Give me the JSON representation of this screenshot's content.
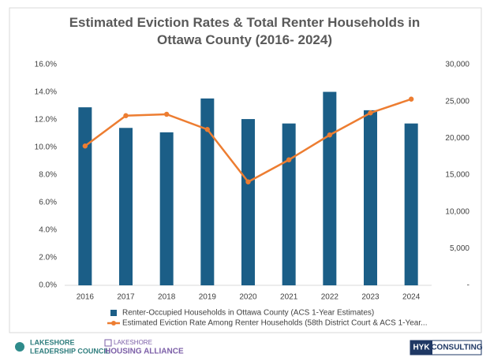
{
  "chart_data": {
    "type": "bar-line",
    "title": "Estimated Eviction Rates & Total Renter Households in Ottawa County (2016- 2024)",
    "categories": [
      "2016",
      "2017",
      "2018",
      "2019",
      "2020",
      "2021",
      "2022",
      "2023",
      "2024"
    ],
    "series": [
      {
        "name": "Renter-Occupied Households in Ottawa County (ACS 1-Year Estimates)",
        "type": "bar",
        "axis": "y2",
        "color": "#1b5e87",
        "values": [
          24200,
          21400,
          20800,
          25400,
          22600,
          22000,
          26300,
          23800,
          22000
        ]
      },
      {
        "name": "Estimated Eviction Rate Among Renter Households (58th District Court & ACS 1-Year...",
        "type": "line",
        "axis": "y",
        "color": "#ed7d31",
        "values": [
          10.1,
          12.3,
          12.4,
          11.3,
          7.5,
          9.1,
          10.9,
          12.5,
          13.5
        ]
      }
    ],
    "ylim": [
      0,
      16
    ],
    "yticks": [
      {
        "value": 0,
        "label": "0.0%"
      },
      {
        "value": 2,
        "label": "2.0%"
      },
      {
        "value": 4,
        "label": "4.0%"
      },
      {
        "value": 6,
        "label": "6.0%"
      },
      {
        "value": 8,
        "label": "8.0%"
      },
      {
        "value": 10,
        "label": "10.0%"
      },
      {
        "value": 12,
        "label": "12.0%"
      },
      {
        "value": 14,
        "label": "14.0%"
      },
      {
        "value": 16,
        "label": "16.0%"
      }
    ],
    "y2lim": [
      0,
      30000
    ],
    "y2ticks": [
      {
        "value": 0,
        "label": "-"
      },
      {
        "value": 5000,
        "label": "5,000"
      },
      {
        "value": 10000,
        "label": "10,000"
      },
      {
        "value": 15000,
        "label": "15,000"
      },
      {
        "value": 20000,
        "label": "20,000"
      },
      {
        "value": 25000,
        "label": "25,000"
      },
      {
        "value": 30000,
        "label": "30,000"
      }
    ],
    "grid": false,
    "legend": "bottom"
  },
  "footer": {
    "logo1": [
      "LAKESHORE",
      "LEADERSHIP COUNCIL"
    ],
    "logo2": [
      "LAKESHORE",
      "HOUSING ALLIANCE"
    ],
    "logo3": [
      "HYK",
      "CONSULTING"
    ]
  }
}
